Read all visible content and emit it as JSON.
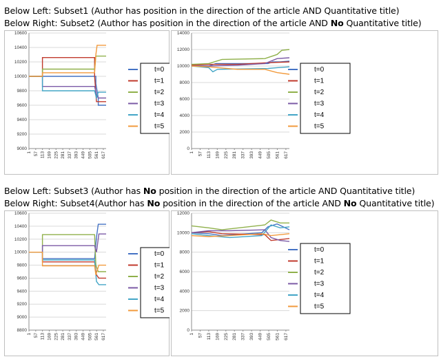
{
  "captions": {
    "top": {
      "line1": {
        "a": "Below Left: Subset1 (Author has position in the direction of the article  AND  Quantitative title)"
      },
      "line2": {
        "a": "Below Right: Subset2 (Author has position in the direction of the article  AND  ",
        "b": "No",
        "c": " Quantitative title)"
      }
    },
    "bottom": {
      "line1": {
        "a": "Below Left: Subset3 (Author has ",
        "b": "No",
        "c": " position in the direction of the article AND  Quantitative title)"
      },
      "line2": {
        "a": "Below Right: Subset4(Author has ",
        "b": "No",
        "c": " position in the direction of the article AND  ",
        "d": "No",
        "e": " Quantitative title)"
      }
    }
  },
  "colors": {
    "t=0": "#4472c4",
    "t=1": "#c0392b",
    "t=2": "#8fb04a",
    "t=3": "#7b5aa6",
    "t=4": "#42a5c6",
    "t=5": "#f29a3c"
  },
  "chart_data": [
    {
      "id": "subset1",
      "type": "line",
      "x_ticks": [
        "1",
        "57",
        "113",
        "169",
        "225",
        "281",
        "337",
        "393",
        "449",
        "505",
        "561",
        "617"
      ],
      "xlim": [
        1,
        640
      ],
      "ylim": [
        9000,
        10600
      ],
      "y_ticks": [
        "9000",
        "9200",
        "9400",
        "9600",
        "9800",
        "10000",
        "10200",
        "10400",
        "10600"
      ],
      "legend": [
        "t=0",
        "t=1",
        "t=2",
        "t=3",
        "t=4",
        "t=5"
      ],
      "series": [
        {
          "name": "t=0",
          "points": [
            [
              1,
              10000
            ],
            [
              113,
              10000
            ],
            [
              113,
              10000
            ],
            [
              555,
              10000
            ],
            [
              555,
              9900
            ],
            [
              575,
              9700
            ],
            [
              575,
              9600
            ],
            [
              640,
              9600
            ]
          ]
        },
        {
          "name": "t=1",
          "points": [
            [
              1,
              10000
            ],
            [
              113,
              10000
            ],
            [
              113,
              10260
            ],
            [
              545,
              10260
            ],
            [
              545,
              10000
            ],
            [
              560,
              9650
            ],
            [
              640,
              9650
            ]
          ]
        },
        {
          "name": "t=2",
          "points": [
            [
              1,
              10000
            ],
            [
              113,
              10000
            ],
            [
              113,
              10100
            ],
            [
              545,
              10100
            ],
            [
              555,
              10280
            ],
            [
              640,
              10280
            ]
          ]
        },
        {
          "name": "t=3",
          "points": [
            [
              1,
              10000
            ],
            [
              113,
              10000
            ],
            [
              113,
              9860
            ],
            [
              545,
              9860
            ],
            [
              560,
              9750
            ],
            [
              575,
              9700
            ],
            [
              640,
              9700
            ]
          ]
        },
        {
          "name": "t=4",
          "points": [
            [
              1,
              10000
            ],
            [
              113,
              10000
            ],
            [
              113,
              9800
            ],
            [
              545,
              9800
            ],
            [
              560,
              9700
            ],
            [
              575,
              9780
            ],
            [
              640,
              9780
            ]
          ]
        },
        {
          "name": "t=5",
          "points": [
            [
              1,
              10000
            ],
            [
              113,
              10000
            ],
            [
              113,
              10050
            ],
            [
              545,
              10050
            ],
            [
              555,
              10300
            ],
            [
              565,
              10430
            ],
            [
              640,
              10430
            ]
          ]
        }
      ]
    },
    {
      "id": "subset2",
      "type": "line",
      "x_ticks": [
        "1",
        "57",
        "113",
        "169",
        "225",
        "281",
        "337",
        "393",
        "449",
        "505",
        "561",
        "617"
      ],
      "xlim": [
        1,
        640
      ],
      "ylim": [
        0,
        14000
      ],
      "y_ticks": [
        "0",
        "2000",
        "4000",
        "6000",
        "8000",
        "10000",
        "12000",
        "14000"
      ],
      "legend": [
        "t=0",
        "t=1",
        "t=2",
        "t=3",
        "t=4",
        "t=5"
      ],
      "series": [
        {
          "name": "t=0",
          "points": [
            [
              1,
              10000
            ],
            [
              113,
              10000
            ],
            [
              160,
              10300
            ],
            [
              500,
              10300
            ],
            [
              530,
              10500
            ],
            [
              580,
              10500
            ],
            [
              640,
              10600
            ]
          ]
        },
        {
          "name": "t=1",
          "points": [
            [
              1,
              10100
            ],
            [
              113,
              10200
            ],
            [
              300,
              10200
            ],
            [
              500,
              10400
            ],
            [
              640,
              10500
            ]
          ]
        },
        {
          "name": "t=2",
          "points": [
            [
              1,
              10200
            ],
            [
              113,
              10300
            ],
            [
              200,
              10800
            ],
            [
              480,
              10900
            ],
            [
              560,
              11400
            ],
            [
              590,
              11900
            ],
            [
              640,
              12000
            ]
          ]
        },
        {
          "name": "t=3",
          "points": [
            [
              1,
              10000
            ],
            [
              113,
              10000
            ],
            [
              300,
              10100
            ],
            [
              480,
              10300
            ],
            [
              560,
              10900
            ],
            [
              640,
              11000
            ]
          ]
        },
        {
          "name": "t=4",
          "points": [
            [
              1,
              10000
            ],
            [
              113,
              9800
            ],
            [
              140,
              9300
            ],
            [
              170,
              9600
            ],
            [
              500,
              9700
            ],
            [
              560,
              9800
            ],
            [
              640,
              9900
            ]
          ]
        },
        {
          "name": "t=5",
          "points": [
            [
              1,
              10000
            ],
            [
              113,
              9900
            ],
            [
              300,
              9600
            ],
            [
              480,
              9600
            ],
            [
              560,
              9200
            ],
            [
              640,
              9000
            ]
          ]
        }
      ]
    },
    {
      "id": "subset3",
      "type": "line",
      "x_ticks": [
        "1",
        "57",
        "113",
        "169",
        "225",
        "281",
        "337",
        "393",
        "449",
        "505",
        "561",
        "617"
      ],
      "xlim": [
        1,
        640
      ],
      "ylim": [
        8800,
        10600
      ],
      "y_ticks": [
        "8800",
        "9000",
        "9200",
        "9400",
        "9600",
        "9800",
        "10000",
        "10200",
        "10400",
        "10600"
      ],
      "legend": [
        "t=0",
        "t=1",
        "t=2",
        "t=3",
        "t=4",
        "t=5"
      ],
      "series": [
        {
          "name": "t=0",
          "points": [
            [
              1,
              10000
            ],
            [
              113,
              10000
            ],
            [
              113,
              9900
            ],
            [
              545,
              9900
            ],
            [
              560,
              10230
            ],
            [
              575,
              10430
            ],
            [
              640,
              10430
            ]
          ]
        },
        {
          "name": "t=1",
          "points": [
            [
              1,
              10000
            ],
            [
              113,
              10000
            ],
            [
              113,
              9850
            ],
            [
              545,
              9850
            ],
            [
              560,
              9650
            ],
            [
              580,
              9600
            ],
            [
              640,
              9600
            ]
          ]
        },
        {
          "name": "t=2",
          "points": [
            [
              1,
              10000
            ],
            [
              113,
              10000
            ],
            [
              113,
              10270
            ],
            [
              545,
              10270
            ],
            [
              555,
              9800
            ],
            [
              575,
              9700
            ],
            [
              640,
              9700
            ]
          ]
        },
        {
          "name": "t=3",
          "points": [
            [
              1,
              10000
            ],
            [
              113,
              10000
            ],
            [
              113,
              10100
            ],
            [
              545,
              10100
            ],
            [
              560,
              10000
            ],
            [
              580,
              10280
            ],
            [
              640,
              10280
            ]
          ]
        },
        {
          "name": "t=4",
          "points": [
            [
              1,
              10000
            ],
            [
              113,
              10000
            ],
            [
              113,
              9880
            ],
            [
              545,
              9880
            ],
            [
              560,
              9550
            ],
            [
              580,
              9500
            ],
            [
              640,
              9500
            ]
          ]
        },
        {
          "name": "t=5",
          "points": [
            [
              1,
              10000
            ],
            [
              113,
              10000
            ],
            [
              113,
              9790
            ],
            [
              545,
              9790
            ],
            [
              555,
              9650
            ],
            [
              580,
              9800
            ],
            [
              640,
              9800
            ]
          ]
        }
      ]
    },
    {
      "id": "subset4",
      "type": "line",
      "x_ticks": [
        "1",
        "57",
        "113",
        "169",
        "225",
        "281",
        "337",
        "393",
        "449",
        "505",
        "561",
        "617"
      ],
      "xlim": [
        1,
        640
      ],
      "ylim": [
        0,
        12000
      ],
      "y_ticks": [
        "0",
        "2000",
        "4000",
        "6000",
        "8000",
        "10000",
        "12000"
      ],
      "legend": [
        "t=0",
        "t=1",
        "t=2",
        "t=3",
        "t=4",
        "t=5"
      ],
      "series": [
        {
          "name": "t=0",
          "points": [
            [
              1,
              10000
            ],
            [
              113,
              9900
            ],
            [
              200,
              9700
            ],
            [
              460,
              10000
            ],
            [
              500,
              10600
            ],
            [
              560,
              10900
            ],
            [
              640,
              10300
            ]
          ]
        },
        {
          "name": "t=1",
          "points": [
            [
              1,
              10000
            ],
            [
              113,
              10100
            ],
            [
              200,
              9900
            ],
            [
              480,
              9800
            ],
            [
              520,
              9200
            ],
            [
              580,
              9300
            ],
            [
              640,
              9400
            ]
          ]
        },
        {
          "name": "t=2",
          "points": [
            [
              1,
              10700
            ],
            [
              113,
              10500
            ],
            [
              200,
              10300
            ],
            [
              480,
              10800
            ],
            [
              520,
              11300
            ],
            [
              580,
              11000
            ],
            [
              640,
              11000
            ]
          ]
        },
        {
          "name": "t=3",
          "points": [
            [
              1,
              10000
            ],
            [
              113,
              10200
            ],
            [
              250,
              10200
            ],
            [
              480,
              10300
            ],
            [
              520,
              9500
            ],
            [
              580,
              9200
            ],
            [
              640,
              9100
            ]
          ]
        },
        {
          "name": "t=4",
          "points": [
            [
              1,
              9900
            ],
            [
              113,
              9700
            ],
            [
              250,
              9500
            ],
            [
              460,
              9700
            ],
            [
              520,
              10800
            ],
            [
              580,
              10500
            ],
            [
              640,
              10600
            ]
          ]
        },
        {
          "name": "t=5",
          "points": [
            [
              1,
              9700
            ],
            [
              113,
              9600
            ],
            [
              250,
              9700
            ],
            [
              460,
              9900
            ],
            [
              520,
              9700
            ],
            [
              580,
              9800
            ],
            [
              640,
              9900
            ]
          ]
        }
      ]
    }
  ]
}
